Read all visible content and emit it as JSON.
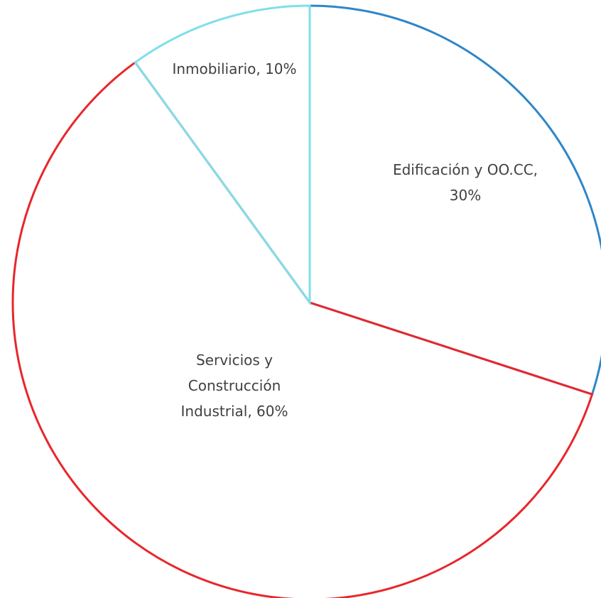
{
  "chart_data": {
    "type": "pie",
    "title": "",
    "slices": [
      {
        "name": "Edificación y OO.CC",
        "value": 30,
        "label_lines": [
          "Edificación y OO.CC,",
          "30%"
        ],
        "color": "#2e86c9"
      },
      {
        "name": "Servicios y Construcción Industrial",
        "value": 60,
        "label_lines": [
          "Servicios y",
          "Construcción",
          "Industrial, 60%"
        ],
        "color": "#e8262b"
      },
      {
        "name": "Inmobiliario",
        "value": 10,
        "label_lines": [
          "Inmobiliario, 10%"
        ],
        "color": "#7fdfea"
      }
    ],
    "start_angle_deg": 0,
    "direction": "clockwise",
    "fill": "none",
    "legend": "none"
  }
}
